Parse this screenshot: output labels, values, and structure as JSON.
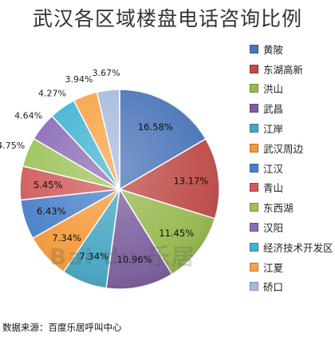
{
  "title": "武汉各区域楼盘电话咨询比例",
  "source": "数据来源：百度乐居呼叫中心",
  "watermark": "Bai du 乐居",
  "chart_data": {
    "type": "pie",
    "title": "武汉各区域楼盘电话咨询比例",
    "legend_position": "right",
    "slices": [
      {
        "label": "黄陂",
        "value": 16.58,
        "display": "16.58%",
        "color": "#4a74b8"
      },
      {
        "label": "东湖高新",
        "value": 13.17,
        "display": "13.17%",
        "color": "#be4b48"
      },
      {
        "label": "洪山",
        "value": 11.45,
        "display": "11.45%",
        "color": "#97b94f"
      },
      {
        "label": "武昌",
        "value": 10.96,
        "display": "10.96%",
        "color": "#7c5e9e"
      },
      {
        "label": "江岸",
        "value": 7.34,
        "display": "7.34%",
        "color": "#46a6c2"
      },
      {
        "label": "武汉周边",
        "value": 7.34,
        "display": "7.34%",
        "color": "#f49a3a"
      },
      {
        "label": "江汉",
        "value": 6.43,
        "display": "6.43%",
        "color": "#4a7fc8"
      },
      {
        "label": "青山",
        "value": 5.45,
        "display": "5.45%",
        "color": "#d05a5a"
      },
      {
        "label": "东西湖",
        "value": 4.75,
        "display": "4.75%",
        "color": "#9cc25a"
      },
      {
        "label": "汉阳",
        "value": 4.64,
        "display": "4.64%",
        "color": "#8a6bb5"
      },
      {
        "label": "经济技术开发区",
        "value": 4.27,
        "display": "4.27%",
        "color": "#3fb2d3"
      },
      {
        "label": "江夏",
        "value": 3.94,
        "display": "3.94%",
        "color": "#f6a245"
      },
      {
        "label": "硚口",
        "value": 3.67,
        "display": "3.67%",
        "color": "#a7b9de"
      }
    ]
  }
}
